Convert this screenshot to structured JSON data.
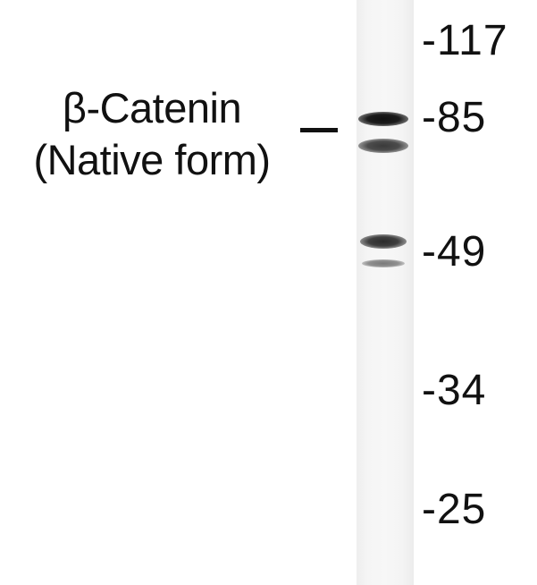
{
  "protein_label": {
    "line1": "β-Catenin",
    "line2": "(Native form)"
  },
  "target_indicator": "_",
  "lane": {
    "bands": [
      {
        "name": "band-85",
        "intensity": 0.9,
        "color": "#1a1a1a"
      },
      {
        "name": "band-80",
        "intensity": 0.65,
        "color": "#4a4a4a"
      },
      {
        "name": "band-50",
        "intensity": 0.7,
        "color": "#3c3c3c"
      },
      {
        "name": "band-46",
        "intensity": 0.35,
        "color": "#8a8a8a"
      }
    ]
  },
  "markers": [
    {
      "label": "-117"
    },
    {
      "label": "-85"
    },
    {
      "label": "-49"
    },
    {
      "label": "-34"
    },
    {
      "label": "-25"
    }
  ]
}
